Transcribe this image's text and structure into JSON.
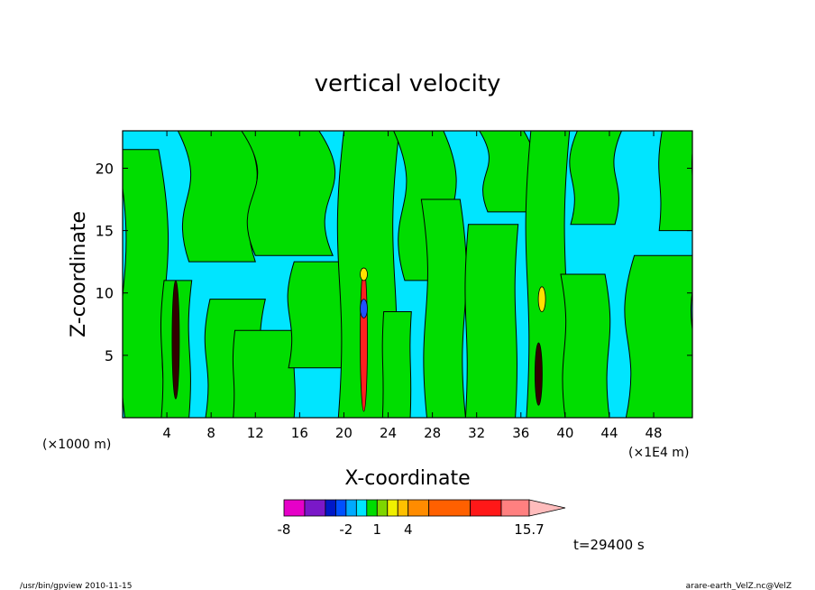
{
  "chart_data": {
    "type": "heatmap",
    "title": "vertical velocity",
    "xlabel": "X-coordinate",
    "ylabel": "Z-coordinate",
    "x_unit_left": "(×1000 m)",
    "x_unit_right": "(×1E4 m)",
    "xlim": [
      0,
      51.5
    ],
    "ylim": [
      0,
      23
    ],
    "x_ticks": [
      "4",
      "8",
      "12",
      "16",
      "20",
      "24",
      "28",
      "32",
      "36",
      "40",
      "44",
      "48"
    ],
    "x_tick_values": [
      4,
      8,
      12,
      16,
      20,
      24,
      28,
      32,
      36,
      40,
      44,
      48
    ],
    "y_ticks": [
      "5",
      "10",
      "15",
      "20"
    ],
    "y_tick_values": [
      5,
      10,
      15,
      20
    ],
    "background_color": "#00e5ff",
    "positive_color": "#00dd00",
    "contour_line_color": "#000000",
    "green_regions": [
      {
        "x0": 0.2,
        "x1": 4.0,
        "z0": 0,
        "z1": 21.5,
        "bend": -1.5
      },
      {
        "x0": 3.5,
        "x1": 6.0,
        "z0": 0,
        "z1": 11.0,
        "bend": 0.5
      },
      {
        "x0": 6.0,
        "x1": 12.0,
        "z0": 12.5,
        "z1": 23.0,
        "bend": -2.0
      },
      {
        "x0": 7.5,
        "x1": 12.5,
        "z0": 0,
        "z1": 9.5,
        "bend": 0.8
      },
      {
        "x0": 10.0,
        "x1": 15.5,
        "z0": 0,
        "z1": 7.0,
        "bend": 0.3
      },
      {
        "x0": 12.0,
        "x1": 19.0,
        "z0": 13.0,
        "z1": 23.0,
        "bend": -2.5
      },
      {
        "x0": 15.0,
        "x1": 20.0,
        "z0": 4.0,
        "z1": 12.5,
        "bend": 1.0
      },
      {
        "x0": 19.5,
        "x1": 24.5,
        "z0": 0,
        "z1": 23.0,
        "bend": 1.0
      },
      {
        "x0": 23.5,
        "x1": 26.0,
        "z0": 0,
        "z1": 8.5,
        "bend": 0.2
      },
      {
        "x0": 25.5,
        "x1": 30.0,
        "z0": 11.0,
        "z1": 23.0,
        "bend": -2.0
      },
      {
        "x0": 27.5,
        "x1": 31.0,
        "z0": 0,
        "z1": 17.5,
        "bend": -1.0
      },
      {
        "x0": 31.0,
        "x1": 35.5,
        "z0": 0,
        "z1": 15.5,
        "bend": 0.5
      },
      {
        "x0": 33.0,
        "x1": 37.0,
        "z0": 16.5,
        "z1": 23.0,
        "bend": -1.5
      },
      {
        "x0": 36.5,
        "x1": 40.0,
        "z0": 0,
        "z1": 23.0,
        "bend": 0.8
      },
      {
        "x0": 40.0,
        "x1": 44.0,
        "z0": 0,
        "z1": 11.5,
        "bend": -0.8
      },
      {
        "x0": 40.5,
        "x1": 44.5,
        "z0": 15.5,
        "z1": 23.0,
        "bend": 1.2
      },
      {
        "x0": 45.5,
        "x1": 51.5,
        "z0": 0,
        "z1": 13.0,
        "bend": 1.5
      },
      {
        "x0": 48.5,
        "x1": 51.5,
        "z0": 15.0,
        "z1": 23.0,
        "bend": 0.5
      }
    ],
    "strong_cores": [
      {
        "x": 4.8,
        "z0": 1.5,
        "z1": 11.0,
        "color": "#330000"
      },
      {
        "x": 21.8,
        "z0": 0.5,
        "z1": 12.0,
        "color": "#ff2020"
      },
      {
        "x": 21.8,
        "z0": 8.0,
        "z1": 9.5,
        "color": "#2050ff"
      },
      {
        "x": 21.8,
        "z0": 11.0,
        "z1": 12.0,
        "color": "#ffe000"
      },
      {
        "x": 37.9,
        "z0": 8.5,
        "z1": 10.5,
        "color": "#ffe000"
      },
      {
        "x": 37.6,
        "z0": 1.0,
        "z1": 6.0,
        "color": "#330000"
      }
    ],
    "colorbar": {
      "levels_labeled": [
        "-8",
        "-2",
        "1",
        "4",
        "15.7"
      ],
      "label_positions": [
        -8,
        -2,
        1,
        4,
        15.7
      ],
      "segments": [
        {
          "from": -8,
          "to": -6,
          "color": "#e600c8"
        },
        {
          "from": -6,
          "to": -4,
          "color": "#7a18c8"
        },
        {
          "from": -4,
          "to": -3,
          "color": "#0018c8"
        },
        {
          "from": -3,
          "to": -2,
          "color": "#0050ff"
        },
        {
          "from": -2,
          "to": -1,
          "color": "#00aaff"
        },
        {
          "from": -1,
          "to": 0,
          "color": "#00e5ff"
        },
        {
          "from": 0,
          "to": 1,
          "color": "#00dd00"
        },
        {
          "from": 1,
          "to": 2,
          "color": "#7ed600"
        },
        {
          "from": 2,
          "to": 3,
          "color": "#f0f000"
        },
        {
          "from": 3,
          "to": 4,
          "color": "#ffc000"
        },
        {
          "from": 4,
          "to": 6,
          "color": "#ff8c00"
        },
        {
          "from": 6,
          "to": 10,
          "color": "#ff6000"
        },
        {
          "from": 10,
          "to": 13,
          "color": "#ff1818"
        },
        {
          "from": 13,
          "to": 15.7,
          "color": "#ff8080"
        }
      ],
      "arrow_color": "#ffbcbc"
    }
  },
  "footer": {
    "time_label": "t=29400 s",
    "left_note": "/usr/bin/gpview  2010-11-15",
    "right_note": "arare-earth_VelZ.nc@VelZ"
  }
}
